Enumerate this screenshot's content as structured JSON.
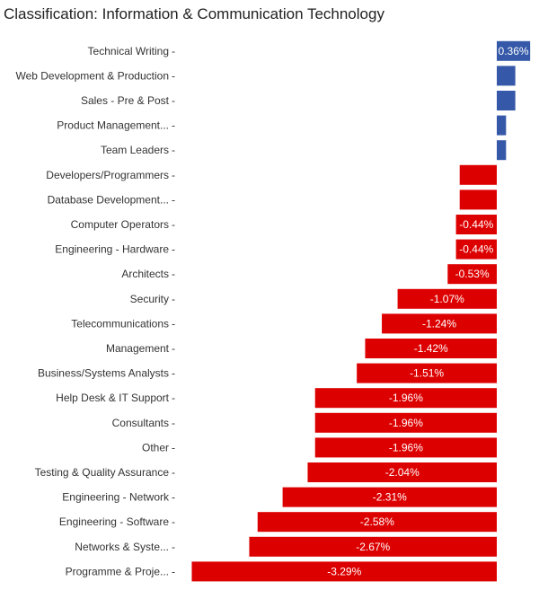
{
  "chart_data": {
    "type": "bar",
    "orientation": "horizontal",
    "title": "Classification: Information & Communication Technology",
    "colors": {
      "positive": "#3559a8",
      "negative": "#dd0000"
    },
    "categories": [
      "Technical Writing",
      "Web Development & Production",
      "Sales - Pre & Post",
      "Product Management...",
      "Team Leaders",
      "Developers/Programmers",
      "Database Development...",
      "Computer Operators",
      "Engineering - Hardware",
      "Architects",
      "Security",
      "Telecommunications",
      "Management",
      "Business/Systems Analysts",
      "Help Desk & IT Support",
      "Consultants",
      "Other",
      "Testing & Quality Assurance",
      "Engineering - Network",
      "Engineering - Software",
      "Networks & Syste...",
      "Programme & Proje..."
    ],
    "values": [
      0.36,
      0.2,
      0.2,
      0.1,
      0.1,
      -0.4,
      -0.4,
      -0.44,
      -0.44,
      -0.53,
      -1.07,
      -1.24,
      -1.42,
      -1.51,
      -1.96,
      -1.96,
      -1.96,
      -2.04,
      -2.31,
      -2.58,
      -2.67,
      -3.29
    ],
    "data_labels": [
      "0.36%",
      "",
      "",
      "",
      "",
      "",
      "",
      "-0.44%",
      "-0.44%",
      "-0.53%",
      "-1.07%",
      "-1.24%",
      "-1.42%",
      "-1.51%",
      "-1.96%",
      "-1.96%",
      "-1.96%",
      "-2.04%",
      "-2.31%",
      "-2.58%",
      "-2.67%",
      "-3.29%"
    ]
  }
}
